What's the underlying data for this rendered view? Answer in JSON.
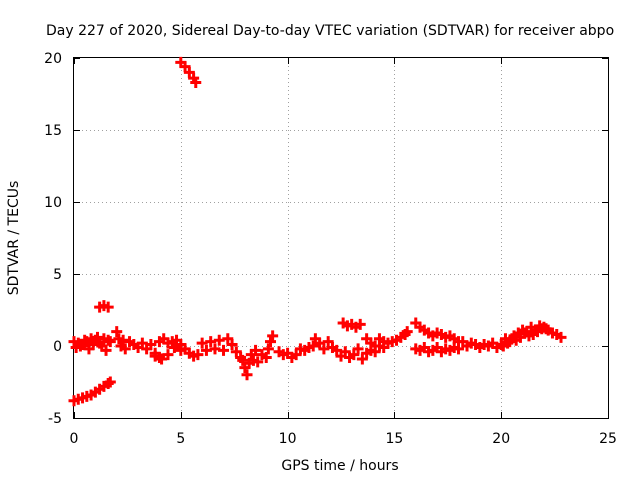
{
  "chart_data": {
    "type": "scatter",
    "title": "Day 227 of 2020, Sidereal Day-to-day VTEC variation (SDTVAR) for receiver abpo",
    "xlabel": "GPS time / hours",
    "ylabel": "SDTVAR / TECUs",
    "xlim": [
      0,
      25
    ],
    "ylim": [
      -5,
      20
    ],
    "xticks": [
      0,
      5,
      10,
      15,
      20,
      25
    ],
    "yticks": [
      -5,
      0,
      5,
      10,
      15,
      20
    ],
    "xtick_labels": [
      "0",
      "5",
      "10",
      "15",
      "20",
      "25"
    ],
    "ytick_labels": [
      "-5",
      "0",
      "5",
      "10",
      "15",
      "20"
    ],
    "grid": true,
    "marker_color": "#ff0000",
    "series": [
      {
        "name": "SDTVAR",
        "values": [
          [
            0.0,
            -3.8
          ],
          [
            0.2,
            -3.7
          ],
          [
            0.4,
            -3.6
          ],
          [
            0.6,
            -3.5
          ],
          [
            0.8,
            -3.4
          ],
          [
            1.0,
            -3.2
          ],
          [
            1.2,
            -3.0
          ],
          [
            1.4,
            -2.8
          ],
          [
            1.6,
            -2.6
          ],
          [
            1.7,
            -2.5
          ],
          [
            0.0,
            0.3
          ],
          [
            0.2,
            0.2
          ],
          [
            0.4,
            0.1
          ],
          [
            0.6,
            0.3
          ],
          [
            0.8,
            0.5
          ],
          [
            1.0,
            0.4
          ],
          [
            1.2,
            0.2
          ],
          [
            1.4,
            0.5
          ],
          [
            1.6,
            0.4
          ],
          [
            1.7,
            0.3
          ],
          [
            0.1,
            -0.1
          ],
          [
            0.3,
            0.0
          ],
          [
            0.5,
            0.4
          ],
          [
            0.7,
            -0.2
          ],
          [
            0.9,
            0.1
          ],
          [
            1.1,
            0.6
          ],
          [
            1.3,
            0.0
          ],
          [
            1.5,
            -0.3
          ],
          [
            1.2,
            2.7
          ],
          [
            1.4,
            2.8
          ],
          [
            1.6,
            2.7
          ],
          [
            2.0,
            1.0
          ],
          [
            2.1,
            0.5
          ],
          [
            2.2,
            0.0
          ],
          [
            2.3,
            0.4
          ],
          [
            2.4,
            -0.2
          ],
          [
            2.6,
            0.3
          ],
          [
            2.8,
            0.1
          ],
          [
            3.0,
            -0.1
          ],
          [
            3.2,
            0.2
          ],
          [
            3.4,
            -0.2
          ],
          [
            3.6,
            0.1
          ],
          [
            3.8,
            -0.5
          ],
          [
            4.0,
            -0.8
          ],
          [
            4.0,
            0.3
          ],
          [
            4.2,
            0.5
          ],
          [
            4.4,
            0.2
          ],
          [
            4.6,
            0.3
          ],
          [
            4.8,
            0.4
          ],
          [
            5.0,
            0.1
          ],
          [
            5.2,
            -0.2
          ],
          [
            5.4,
            -0.5
          ],
          [
            5.6,
            -0.7
          ],
          [
            5.8,
            -0.6
          ],
          [
            3.8,
            -0.7
          ],
          [
            4.1,
            -0.9
          ],
          [
            4.4,
            -0.6
          ],
          [
            4.7,
            -0.1
          ],
          [
            5.0,
            -0.3
          ],
          [
            5.0,
            19.7
          ],
          [
            5.2,
            19.4
          ],
          [
            5.4,
            19.0
          ],
          [
            5.6,
            18.6
          ],
          [
            5.7,
            18.3
          ],
          [
            6.0,
            0.2
          ],
          [
            6.2,
            -0.3
          ],
          [
            6.4,
            0.3
          ],
          [
            6.6,
            -0.2
          ],
          [
            6.8,
            0.4
          ],
          [
            7.0,
            -0.3
          ],
          [
            7.2,
            0.5
          ],
          [
            7.4,
            0.1
          ],
          [
            7.6,
            -0.4
          ],
          [
            7.8,
            -0.8
          ],
          [
            7.9,
            -1.0
          ],
          [
            8.0,
            -1.5
          ],
          [
            8.1,
            -2.0
          ],
          [
            8.2,
            -1.2
          ],
          [
            8.3,
            -0.6
          ],
          [
            8.4,
            -1.0
          ],
          [
            8.5,
            -0.3
          ],
          [
            8.6,
            -1.1
          ],
          [
            8.8,
            -0.6
          ],
          [
            9.0,
            -0.8
          ],
          [
            9.1,
            -0.2
          ],
          [
            9.2,
            0.3
          ],
          [
            9.3,
            0.7
          ],
          [
            9.6,
            -0.4
          ],
          [
            9.8,
            -0.6
          ],
          [
            10.0,
            -0.5
          ],
          [
            10.2,
            -0.8
          ],
          [
            10.4,
            -0.6
          ],
          [
            10.6,
            -0.2
          ],
          [
            10.8,
            -0.3
          ],
          [
            11.0,
            -0.1
          ],
          [
            11.2,
            0.0
          ],
          [
            11.3,
            0.5
          ],
          [
            11.5,
            0.2
          ],
          [
            11.7,
            -0.2
          ],
          [
            11.9,
            0.3
          ],
          [
            12.1,
            -0.1
          ],
          [
            12.3,
            -0.3
          ],
          [
            12.5,
            -0.7
          ],
          [
            12.7,
            -0.4
          ],
          [
            12.9,
            -0.8
          ],
          [
            13.1,
            -0.6
          ],
          [
            13.3,
            -0.2
          ],
          [
            13.5,
            -0.9
          ],
          [
            13.7,
            -0.5
          ],
          [
            13.9,
            -0.3
          ],
          [
            14.1,
            -0.4
          ],
          [
            14.3,
            0.0
          ],
          [
            14.5,
            -0.1
          ],
          [
            14.7,
            0.2
          ],
          [
            14.9,
            0.3
          ],
          [
            15.1,
            0.4
          ],
          [
            15.3,
            0.6
          ],
          [
            15.5,
            0.8
          ],
          [
            15.6,
            1.0
          ],
          [
            13.7,
            0.5
          ],
          [
            13.9,
            0.2
          ],
          [
            14.1,
            0.0
          ],
          [
            14.3,
            0.5
          ],
          [
            14.5,
            0.3
          ],
          [
            12.6,
            1.6
          ],
          [
            12.8,
            1.4
          ],
          [
            13.0,
            1.5
          ],
          [
            13.2,
            1.3
          ],
          [
            13.4,
            1.5
          ],
          [
            16.0,
            1.6
          ],
          [
            16.2,
            1.3
          ],
          [
            16.4,
            1.1
          ],
          [
            16.6,
            0.9
          ],
          [
            16.8,
            0.7
          ],
          [
            17.0,
            0.9
          ],
          [
            17.2,
            0.8
          ],
          [
            17.4,
            0.6
          ],
          [
            17.6,
            0.7
          ],
          [
            17.8,
            0.5
          ],
          [
            18.0,
            0.3
          ],
          [
            16.0,
            -0.2
          ],
          [
            16.2,
            -0.3
          ],
          [
            16.4,
            -0.1
          ],
          [
            16.6,
            -0.4
          ],
          [
            16.8,
            -0.3
          ],
          [
            17.0,
            -0.1
          ],
          [
            17.2,
            -0.4
          ],
          [
            17.4,
            -0.2
          ],
          [
            17.6,
            -0.3
          ],
          [
            17.8,
            -0.1
          ],
          [
            18.0,
            -0.2
          ],
          [
            18.2,
            0.3
          ],
          [
            18.4,
            0.0
          ],
          [
            18.6,
            0.2
          ],
          [
            18.8,
            0.1
          ],
          [
            19.0,
            -0.1
          ],
          [
            19.2,
            0.1
          ],
          [
            19.4,
            0.0
          ],
          [
            19.6,
            0.2
          ],
          [
            19.8,
            -0.1
          ],
          [
            20.0,
            0.1
          ],
          [
            20.2,
            0.5
          ],
          [
            20.4,
            0.3
          ],
          [
            20.6,
            0.7
          ],
          [
            20.8,
            0.9
          ],
          [
            21.0,
            1.1
          ],
          [
            21.2,
            1.0
          ],
          [
            21.4,
            1.3
          ],
          [
            21.6,
            1.1
          ],
          [
            21.8,
            1.4
          ],
          [
            22.0,
            1.3
          ],
          [
            22.2,
            1.1
          ],
          [
            22.4,
            0.9
          ],
          [
            22.6,
            0.8
          ],
          [
            22.8,
            0.6
          ],
          [
            20.1,
            0.0
          ],
          [
            20.3,
            0.2
          ],
          [
            20.5,
            0.5
          ],
          [
            20.7,
            0.4
          ],
          [
            20.9,
            0.6
          ],
          [
            21.1,
            0.9
          ],
          [
            21.3,
            0.7
          ],
          [
            21.5,
            0.8
          ],
          [
            21.7,
            1.0
          ],
          [
            21.9,
            1.2
          ],
          [
            22.1,
            1.2
          ]
        ]
      }
    ]
  }
}
